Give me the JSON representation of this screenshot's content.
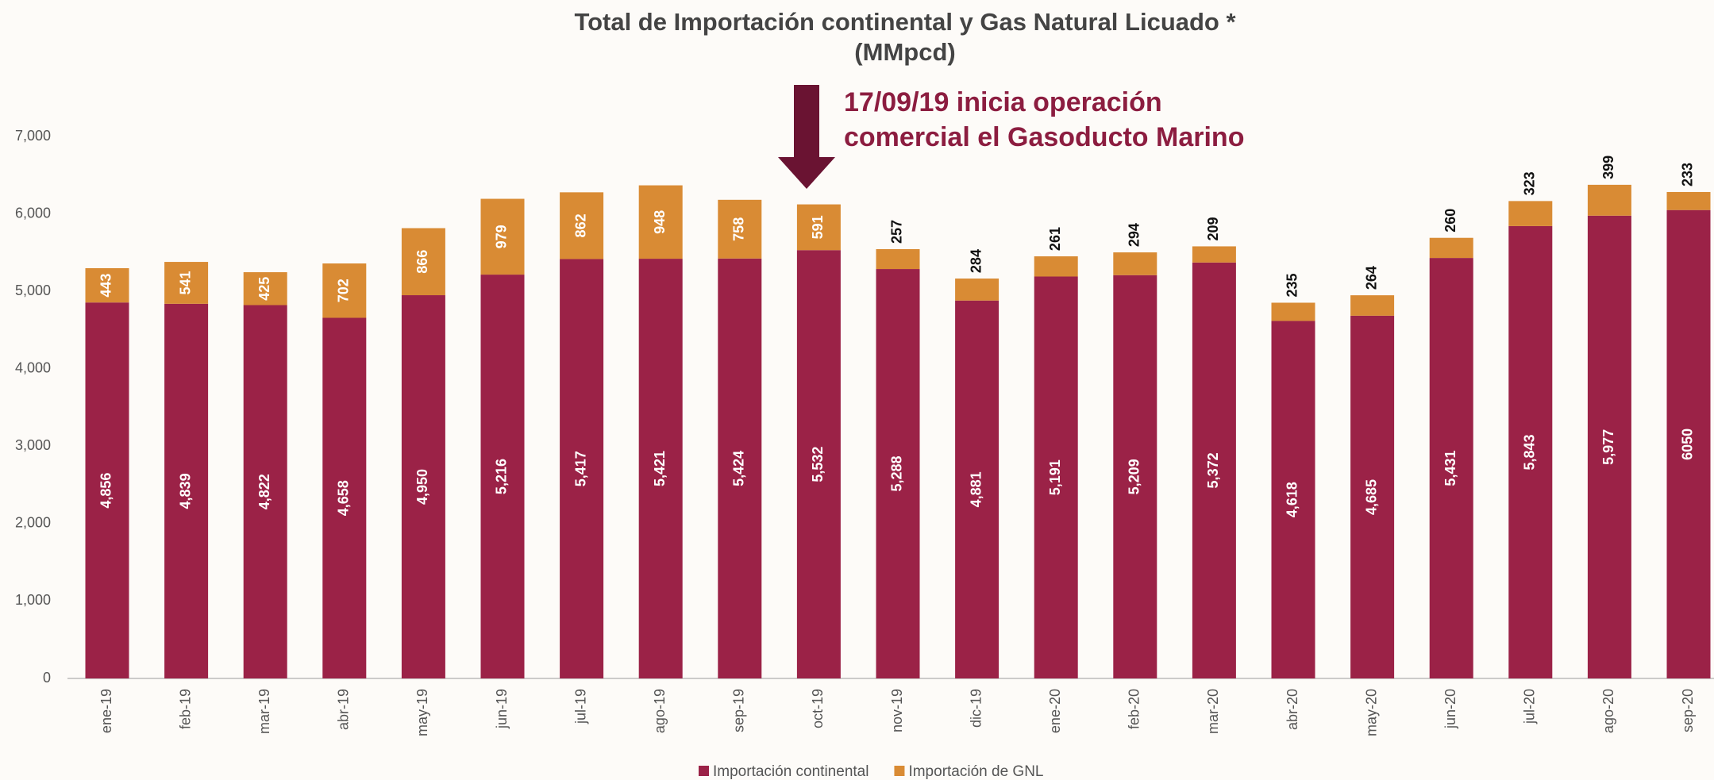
{
  "chart_data": {
    "type": "bar",
    "stacked": true,
    "title": "Total de Importación continental y Gas Natural Licuado *",
    "subtitle": "(MMpcd)",
    "annotation": [
      "17/09/19 inicia operación",
      "comercial el Gasoducto Marino"
    ],
    "categories": [
      "ene-19",
      "feb-19",
      "mar-19",
      "abr-19",
      "may-19",
      "jun-19",
      "jul-19",
      "ago-19",
      "sep-19",
      "oct-19",
      "nov-19",
      "dic-19",
      "ene-20",
      "feb-20",
      "mar-20",
      "abr-20",
      "may-20",
      "jun-20",
      "jul-20",
      "ago-20",
      "sep-20"
    ],
    "series": [
      {
        "name": "Importación continental",
        "color": "#9b2247",
        "values": [
          4856,
          4839,
          4822,
          4658,
          4950,
          5216,
          5417,
          5421,
          5424,
          5532,
          5288,
          4881,
          5191,
          5209,
          5372,
          4618,
          4685,
          5431,
          5843,
          5977,
          6050
        ],
        "value_labels": [
          "4,856",
          "4,839",
          "4,822",
          "4,658",
          "4,950",
          "5,216",
          "5,417",
          "5,421",
          "5,424",
          "5,532",
          "5,288",
          "4,881",
          "5,191",
          "5,209",
          "5,372",
          "4,618",
          "4,685",
          "5,431",
          "5,843",
          "5,977",
          "6050"
        ]
      },
      {
        "name": "Importación de GNL",
        "color": "#d98b34",
        "values": [
          443,
          541,
          425,
          702,
          866,
          979,
          862,
          948,
          758,
          591,
          257,
          284,
          261,
          294,
          209,
          235,
          264,
          260,
          323,
          399,
          233
        ]
      }
    ],
    "ylim": [
      0,
      7000
    ],
    "yticks": [
      0,
      {
        "value": 1000,
        "label": "1,000"
      },
      {
        "value": 2000,
        "label": "2,000"
      },
      {
        "value": 3000,
        "label": "3,000"
      },
      {
        "value": 4000,
        "label": "4,000"
      },
      {
        "value": 5000,
        "label": "5,000"
      },
      {
        "value": 6000,
        "label": "6,000"
      },
      {
        "value": 7000,
        "label": "7,000"
      }
    ],
    "legend": "bottom"
  }
}
